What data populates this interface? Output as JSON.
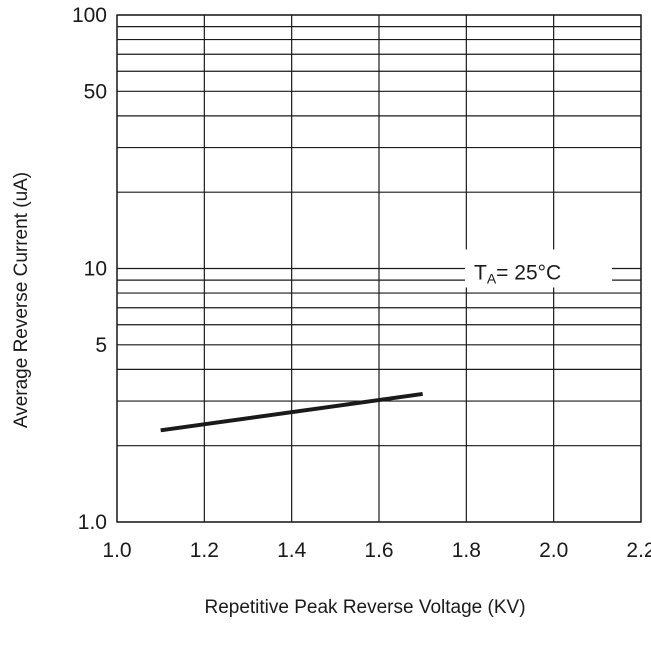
{
  "chart_data": {
    "type": "line",
    "title": "",
    "xlabel": "Repetitive Peak Reverse Voltage (KV)",
    "ylabel": "Average Reverse Current  (uA)",
    "x_scale": "linear",
    "y_scale": "log",
    "xlim": [
      1.0,
      2.2
    ],
    "ylim": [
      1.0,
      100
    ],
    "x_ticks": [
      "1.0",
      "1.2",
      "1.4",
      "1.6",
      "1.8",
      "2.0",
      "2.2"
    ],
    "y_ticks": [
      {
        "value": 1,
        "label": "1.0"
      },
      {
        "value": 5,
        "label": "5"
      },
      {
        "value": 10,
        "label": "10"
      },
      {
        "value": 50,
        "label": "50"
      },
      {
        "value": 100,
        "label": "100"
      }
    ],
    "grid": true,
    "series": [
      {
        "x": [
          1.1,
          1.7
        ],
        "y": [
          2.3,
          3.2
        ]
      }
    ],
    "annotation": {
      "main": "T",
      "sub": "A",
      "rest": "= 25°C"
    }
  }
}
